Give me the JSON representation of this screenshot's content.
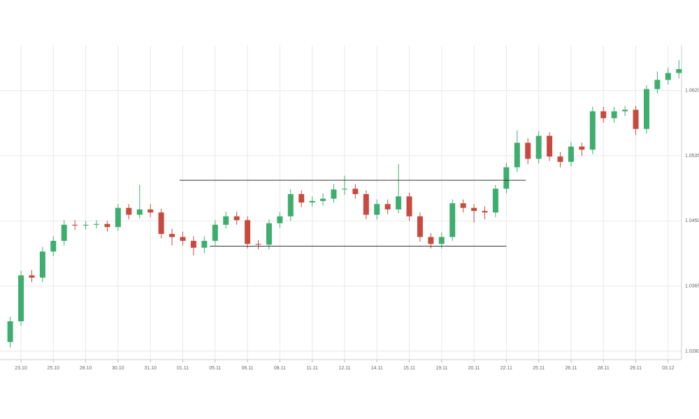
{
  "chart_data": {
    "type": "candlestick",
    "categories": [
      null,
      "23.10",
      null,
      null,
      "25.10",
      null,
      null,
      "28.10",
      null,
      null,
      "30.10",
      null,
      null,
      "31.10",
      null,
      null,
      "01.11",
      null,
      null,
      "05.11",
      null,
      null,
      "06.11",
      null,
      null,
      "08.11",
      null,
      null,
      "11.11",
      null,
      null,
      "12.11",
      null,
      null,
      "14.11",
      null,
      null,
      "15.11",
      null,
      null,
      "19.11",
      null,
      null,
      "20.11",
      null,
      null,
      "22.11",
      null,
      null,
      "25.11",
      null,
      null,
      "26.11",
      null,
      null,
      "28.11",
      null,
      null,
      "29.11",
      null,
      null,
      "03.12",
      null
    ],
    "open": [
      1.0292,
      1.0319,
      1.0379,
      1.0376,
      1.041,
      1.0424,
      1.0445,
      1.0444,
      1.0445,
      1.0446,
      1.0442,
      1.0467,
      1.0458,
      1.0465,
      1.0461,
      1.0433,
      1.0429,
      1.0424,
      1.0415,
      1.0424,
      1.0445,
      1.0456,
      1.0451,
      1.042,
      1.0419,
      1.0447,
      1.0456,
      1.0485,
      1.0474,
      1.0476,
      1.0479,
      1.0491,
      1.0492,
      1.0485,
      1.0458,
      1.0472,
      1.0465,
      1.0482,
      1.0456,
      1.0429,
      1.042,
      1.0429,
      1.0473,
      1.0467,
      1.0463,
      1.0461,
      1.0492,
      1.052,
      1.0552,
      1.0531,
      1.0561,
      1.0534,
      1.0527,
      1.0547,
      1.0543,
      1.0593,
      1.0584,
      1.0593,
      1.0595,
      1.057,
      1.0622,
      1.0634,
      1.0643
    ],
    "high": [
      1.0325,
      1.0385,
      1.0386,
      1.0416,
      1.043,
      1.0451,
      1.0451,
      1.045,
      1.0451,
      1.045,
      1.0472,
      1.0472,
      1.0497,
      1.0472,
      1.0466,
      1.044,
      1.0436,
      1.043,
      1.043,
      1.0451,
      1.0462,
      1.0462,
      1.0456,
      1.0425,
      1.0452,
      1.0462,
      1.0491,
      1.049,
      1.0482,
      1.0486,
      1.0498,
      1.0509,
      1.0498,
      1.049,
      1.0478,
      1.0478,
      1.0524,
      1.0487,
      1.0461,
      1.0434,
      1.0435,
      1.0478,
      1.0478,
      1.0472,
      1.0469,
      1.0497,
      1.0526,
      1.0568,
      1.0558,
      1.0567,
      1.0566,
      1.054,
      1.0553,
      1.0552,
      1.0599,
      1.0599,
      1.0599,
      1.06,
      1.06,
      1.0627,
      1.0645,
      1.065,
      1.066
    ],
    "low": [
      1.0285,
      1.0313,
      1.037,
      1.037,
      1.0404,
      1.0418,
      1.0438,
      1.0439,
      1.044,
      1.0436,
      1.0437,
      1.0452,
      1.0453,
      1.0455,
      1.0427,
      1.0418,
      1.0418,
      1.0405,
      1.0408,
      1.0418,
      1.044,
      1.0445,
      1.0414,
      1.0413,
      1.0413,
      1.0441,
      1.045,
      1.0468,
      1.0469,
      1.047,
      1.0474,
      1.0484,
      1.0479,
      1.0452,
      1.0452,
      1.0459,
      1.046,
      1.045,
      1.0423,
      1.0414,
      1.0414,
      1.0424,
      1.0461,
      1.0448,
      1.0452,
      1.0455,
      1.0486,
      1.0514,
      1.0524,
      1.0525,
      1.0528,
      1.052,
      1.0521,
      1.0535,
      1.0537,
      1.0578,
      1.0578,
      1.0587,
      1.0562,
      1.0564,
      1.0616,
      1.0628,
      1.0636
    ],
    "close": [
      1.0319,
      1.0379,
      1.0376,
      1.041,
      1.0424,
      1.0445,
      1.0444,
      1.0445,
      1.0446,
      1.0442,
      1.0467,
      1.0458,
      1.0465,
      1.0461,
      1.0433,
      1.0429,
      1.0424,
      1.0415,
      1.0424,
      1.0445,
      1.0456,
      1.0451,
      1.042,
      1.0419,
      1.0447,
      1.0456,
      1.0485,
      1.0474,
      1.0476,
      1.0479,
      1.0491,
      1.0492,
      1.0485,
      1.0458,
      1.0472,
      1.0465,
      1.0482,
      1.0456,
      1.0429,
      1.042,
      1.0429,
      1.0473,
      1.0467,
      1.0463,
      1.0461,
      1.0492,
      1.052,
      1.0552,
      1.0531,
      1.0561,
      1.0534,
      1.0527,
      1.0547,
      1.0543,
      1.0593,
      1.0584,
      1.0593,
      1.0595,
      1.057,
      1.0622,
      1.0634,
      1.0643,
      1.0648
    ],
    "up_color": "#3dae6e",
    "down_color": "#c84a3e",
    "ylim": [
      1.0269,
      1.0679
    ],
    "yticks": [
      {
        "value": 1.028,
        "label": "1.0280"
      },
      {
        "value": 1.0365,
        "label": "1.0365"
      },
      {
        "value": 1.045,
        "label": "1.0450"
      },
      {
        "value": 1.0535,
        "label": "1.0535"
      },
      {
        "value": 1.062,
        "label": "1.0620"
      }
    ],
    "levels": [
      {
        "value": 1.0503,
        "x_range": [
          15.7,
          47.8
        ]
      },
      {
        "value": 1.0417,
        "x_range": [
          18.5,
          46
        ]
      }
    ],
    "level_color": "#333333",
    "grid": true
  }
}
